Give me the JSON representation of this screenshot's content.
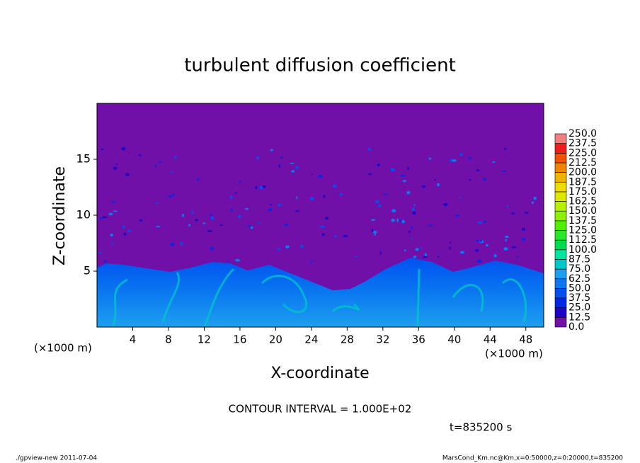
{
  "chart_data": {
    "type": "contour",
    "title": "turbulent diffusion coefficient",
    "x_label": "X-coordinate",
    "y_label": "Z-coordinate",
    "x_unit": "(×1000 m)",
    "y_unit": "(×1000 m)",
    "xlim": [
      0,
      50
    ],
    "ylim": [
      0,
      20
    ],
    "xticks": [
      4,
      8,
      12,
      16,
      20,
      24,
      28,
      32,
      36,
      40,
      44,
      48
    ],
    "yticks": [
      5,
      10,
      15
    ],
    "colorbar": {
      "levels": [
        {
          "value": 0,
          "label": "0.0"
        },
        12.5,
        {
          "value": 25,
          "label": "25.0"
        },
        37.5,
        {
          "value": 50,
          "label": "50.0"
        },
        62.5,
        {
          "value": 75,
          "label": "75.0"
        },
        87.5,
        {
          "value": 100,
          "label": "100.0"
        },
        112.5,
        {
          "value": 125,
          "label": "125.0"
        },
        137.5,
        {
          "value": 150,
          "label": "150.0"
        },
        162.5,
        {
          "value": 175,
          "label": "175.0"
        },
        187.5,
        {
          "value": 200,
          "label": "200.0"
        },
        212.5,
        {
          "value": 225,
          "label": "225.0"
        },
        237.5,
        {
          "value": 250,
          "label": "250.0"
        }
      ],
      "colors": [
        "#7010a8",
        "#1e00c8",
        "#0028e6",
        "#0050f0",
        "#0a78f0",
        "#1ea0f0",
        "#00c8c8",
        "#00e6a0",
        "#00dc50",
        "#28e628",
        "#50f000",
        "#8cf000",
        "#b4f000",
        "#dce600",
        "#f0dc00",
        "#f0b400",
        "#f08200",
        "#f05000",
        "#f01e1e",
        "#f08080"
      ]
    },
    "contour_interval": "CONTOUR INTERVAL = 1.000E+02",
    "time_label": "t=835200 s",
    "footer_left": "./gpview-new  2011-07-04",
    "footer_right": "MarsCond_Km.nc@Km,x=0:50000,z=0:20000,t=835200"
  }
}
